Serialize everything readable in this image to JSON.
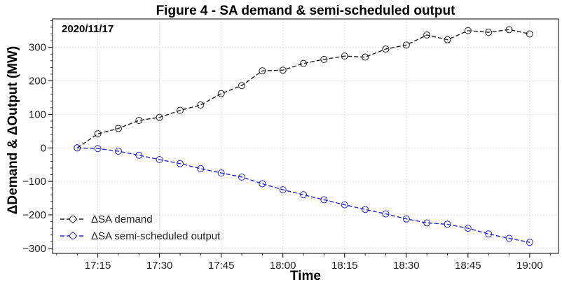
{
  "chart_data": {
    "type": "line",
    "title": "Figure 4 - SA demand & semi-scheduled output",
    "xlabel": "Time",
    "ylabel": "ΔDemand & ΔOutput (MW)",
    "annotation": "2020/11/17",
    "x": [
      "17:10",
      "17:15",
      "17:20",
      "17:25",
      "17:30",
      "17:35",
      "17:40",
      "17:45",
      "17:50",
      "17:55",
      "18:00",
      "18:05",
      "18:10",
      "18:15",
      "18:20",
      "18:25",
      "18:30",
      "18:35",
      "18:40",
      "18:45",
      "18:50",
      "18:55",
      "19:00"
    ],
    "x_ticks": [
      "17:15",
      "17:30",
      "17:45",
      "18:00",
      "18:15",
      "18:30",
      "18:45",
      "19:00"
    ],
    "ylim": [
      -315,
      385
    ],
    "y_ticks": [
      -300,
      -200,
      -100,
      0,
      100,
      200,
      300
    ],
    "y_tick_labels": [
      "−300",
      "−200",
      "−100",
      "0",
      "100",
      "200",
      "300"
    ],
    "grid": true,
    "legend_position": "lower-left",
    "series": [
      {
        "name": "ΔSA demand",
        "color": "#222222",
        "values": [
          0,
          42,
          58,
          82,
          91,
          112,
          128,
          162,
          186,
          230,
          232,
          252,
          264,
          274,
          271,
          295,
          307,
          337,
          323,
          350,
          345,
          353,
          340
        ]
      },
      {
        "name": "ΔSA semi-scheduled output",
        "color": "#2828e0",
        "values": [
          0,
          -2,
          -10,
          -22,
          -35,
          -47,
          -62,
          -75,
          -87,
          -107,
          -125,
          -140,
          -155,
          -170,
          -184,
          -197,
          -212,
          -224,
          -228,
          -240,
          -257,
          -270,
          -282
        ]
      }
    ]
  }
}
